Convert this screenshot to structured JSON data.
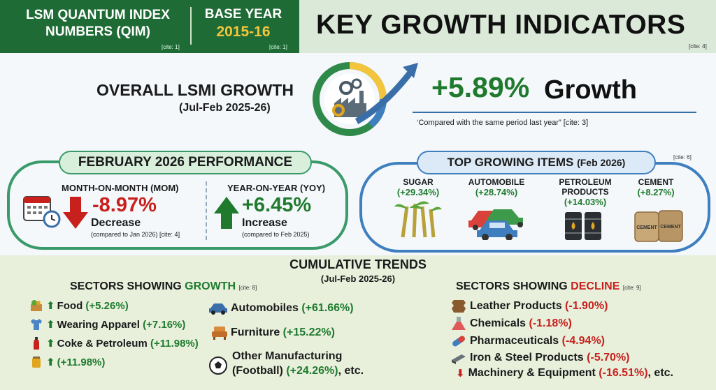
{
  "header": {
    "left_title": "LSM QUANTUM INDEX NUMBERS (QIM)",
    "left_cite": "[cite: 1]",
    "base_label": "BASE YEAR",
    "base_year": "2015-16",
    "base_cite": "[cite: 1]",
    "main_title": "KEY GROWTH INDICATORS",
    "main_cite": "[cite: 4]"
  },
  "overall": {
    "title": "OVERALL LSMI GROWTH",
    "period": "(Jul-Feb 2025-26)",
    "value": "+5.89%",
    "value_word": "Growth",
    "note": "‘Compared with the same period last year” [cite: 3]"
  },
  "february": {
    "title": "FEBRUARY 2026 PERFORMANCE",
    "mom": {
      "heading": "MONTH-ON-MONTH (MOM)",
      "value": "-8.97%",
      "word": "Decrease",
      "comparison": "(compared to Jan 2026) [cite: 4]"
    },
    "yoy": {
      "heading": "YEAR-ON-YEAR (YOY)",
      "value": "+6.45%",
      "word": "Increase",
      "comparison": "(compared to Feb 2025)"
    }
  },
  "top_growing": {
    "title": "TOP GROWING ITEMS",
    "title_suffix": "(Feb 2026)",
    "cite": "[cite: 6]",
    "items": [
      {
        "name": "SUGAR",
        "value": "(+29.34%)",
        "icon": "sugarcane-icon"
      },
      {
        "name": "AUTOMOBILE",
        "value": "(+28.74%)",
        "icon": "cars-icon"
      },
      {
        "name": "PETROLEUM PRODUCTS",
        "value": "(+14.03%)",
        "icon": "oil-barrels-icon"
      },
      {
        "name": "CEMENT",
        "value": "(+8.27%)",
        "icon": "cement-bags-icon"
      }
    ],
    "cement_bag_label": "CEMENT"
  },
  "cumulative": {
    "title": "CUMULATIVE TRENDS",
    "period": "(Jul-Feb 2025-26)",
    "growth_title_prefix": "SECTORS SHOWING",
    "growth_title_word": "GROWTH",
    "growth_cite": "[cite: 8]",
    "decline_title_prefix": "SECTORS SHOWING",
    "decline_title_word": "DECLINE",
    "decline_cite": "[cite: 9]",
    "growth_left": [
      {
        "name": "Food",
        "value": "(+5.26%)",
        "icon": "food-basket-icon"
      },
      {
        "name": "Wearing Apparel",
        "value": "(+7.16%)",
        "icon": "shirt-icon"
      },
      {
        "name": "Coke & Petroleum",
        "value": "(+11.98%)",
        "icon": "bottle-icon"
      },
      {
        "name": "",
        "value": "(+11.98%)",
        "icon": "jar-icon"
      }
    ],
    "growth_right": [
      {
        "name": "Automobiles",
        "value": "(+61.66%)",
        "icon": "car-icon"
      },
      {
        "name": "Furniture",
        "value": "(+15.22%)",
        "icon": "armchair-icon"
      }
    ],
    "other_line1": "Other Manufacturing",
    "other_line2_prefix": "(Football)",
    "other_value": "(+24.26%)",
    "other_suffix": ", etc.",
    "decline": [
      {
        "name": "Leather Products",
        "value": "(-1.90%)",
        "icon": "leather-icon"
      },
      {
        "name": "Chemicals",
        "value": "(-1.18%)",
        "icon": "flask-icon"
      },
      {
        "name": "Pharmaceuticals",
        "value": "(-4.94%)",
        "icon": "pill-icon"
      },
      {
        "name": "Iron & Steel Products",
        "value": "(-5.70%)",
        "icon": "steel-beam-icon"
      },
      {
        "name": "Machinery & Equipment",
        "value": "(-16.51%)",
        "suffix": ", etc.",
        "icon": "machinery-icon"
      }
    ]
  },
  "colors": {
    "header_green": "#1f6b35",
    "growth_green": "#1f7a2e",
    "decline_red": "#c8201d",
    "gold": "#f2c53d",
    "blue": "#3f7fbf"
  }
}
